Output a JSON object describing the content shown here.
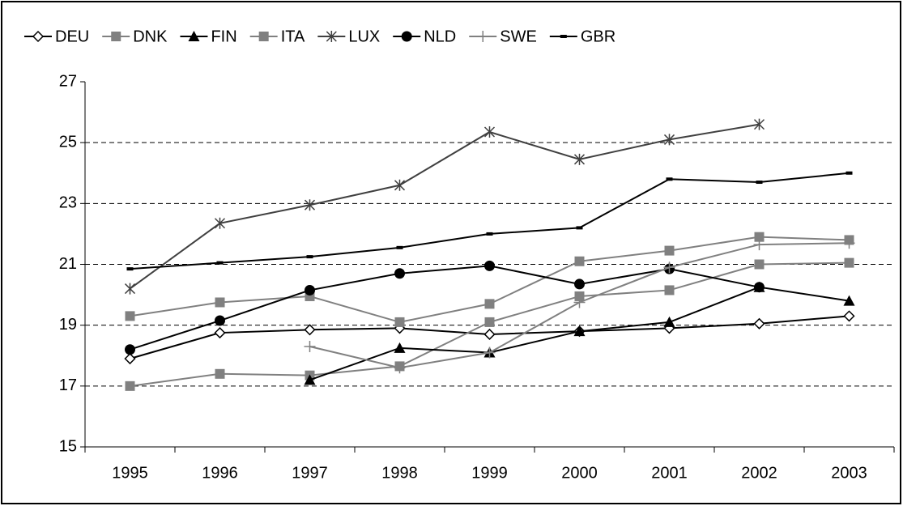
{
  "chart_data": {
    "type": "line",
    "categories": [
      "1995",
      "1996",
      "1997",
      "1998",
      "1999",
      "2000",
      "2001",
      "2002",
      "2003"
    ],
    "ylim": [
      15,
      27
    ],
    "yticks": [
      15,
      17,
      19,
      21,
      23,
      25,
      27
    ],
    "grid": true,
    "legend": "top",
    "series": [
      {
        "name": "DEU",
        "color": "#000000",
        "marker": "diamond",
        "values": [
          17.9,
          18.75,
          18.85,
          18.9,
          18.7,
          18.8,
          18.9,
          19.05,
          19.3
        ]
      },
      {
        "name": "DNK",
        "color": "#808080",
        "marker": "square",
        "values": [
          17.0,
          17.4,
          17.35,
          17.65,
          19.1,
          19.95,
          20.15,
          21.0,
          21.05
        ]
      },
      {
        "name": "FIN",
        "color": "#000000",
        "marker": "triangle",
        "values": [
          null,
          null,
          17.2,
          18.25,
          18.1,
          18.8,
          19.1,
          20.25,
          19.8
        ]
      },
      {
        "name": "ITA",
        "color": "#808080",
        "marker": "square",
        "values": [
          19.3,
          19.75,
          19.95,
          19.1,
          19.7,
          21.1,
          21.45,
          21.9,
          21.8
        ]
      },
      {
        "name": "LUX",
        "color": "#404040",
        "marker": "star",
        "values": [
          20.2,
          22.35,
          22.95,
          23.6,
          25.35,
          24.45,
          25.1,
          25.6,
          null
        ]
      },
      {
        "name": "NLD",
        "color": "#000000",
        "marker": "circle",
        "values": [
          18.2,
          19.15,
          20.15,
          20.7,
          20.95,
          20.35,
          20.85,
          20.25,
          null
        ]
      },
      {
        "name": "SWE",
        "color": "#808080",
        "marker": "plus",
        "values": [
          null,
          null,
          18.3,
          17.6,
          18.1,
          19.75,
          20.9,
          21.65,
          21.7
        ]
      },
      {
        "name": "GBR",
        "color": "#000000",
        "marker": "dash",
        "values": [
          20.85,
          21.05,
          21.25,
          21.55,
          22.0,
          22.2,
          23.8,
          23.7,
          24.0
        ]
      }
    ]
  }
}
